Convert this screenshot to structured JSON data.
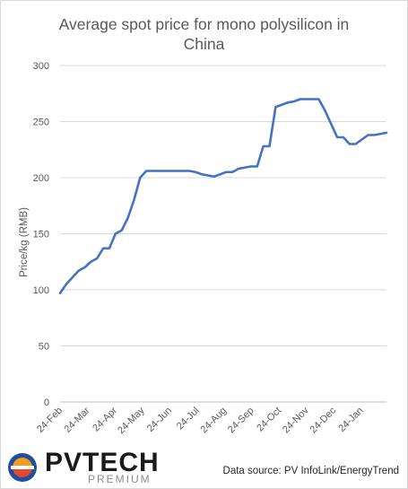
{
  "chart_data": {
    "type": "line",
    "title_lines": [
      "Average spot price for mono polysilicon in",
      "China"
    ],
    "ylabel": "Price/kg (RMB)",
    "ylim": [
      0,
      300
    ],
    "yticks": [
      0,
      50,
      100,
      150,
      200,
      250,
      300
    ],
    "xticks": [
      "24-Feb",
      "24-Mar",
      "24-Apr",
      "24-May",
      "24-Jun",
      "24-Jul",
      "24-Aug",
      "24-Sep",
      "24-Oct",
      "24-Nov",
      "24-Dec",
      "24-Jan"
    ],
    "grid": true,
    "series": [
      {
        "color": "#4472c4",
        "values": [
          97,
          105,
          111,
          117,
          120,
          125,
          128,
          137,
          137,
          150,
          153,
          164,
          180,
          200,
          206,
          206,
          206,
          206,
          206,
          206,
          206,
          206,
          205,
          203,
          202,
          201,
          203,
          205,
          205,
          208,
          209,
          210,
          210,
          228,
          228,
          263,
          265,
          267,
          268,
          270,
          270,
          270,
          270,
          260,
          248,
          236,
          236,
          230,
          230,
          234,
          238,
          238,
          239,
          240
        ]
      }
    ]
  },
  "footer": {
    "source": "Data source: PV  InfoLink/EnergyTrend",
    "logo_main": "PVTECH",
    "logo_sub": "PREMIUM"
  }
}
